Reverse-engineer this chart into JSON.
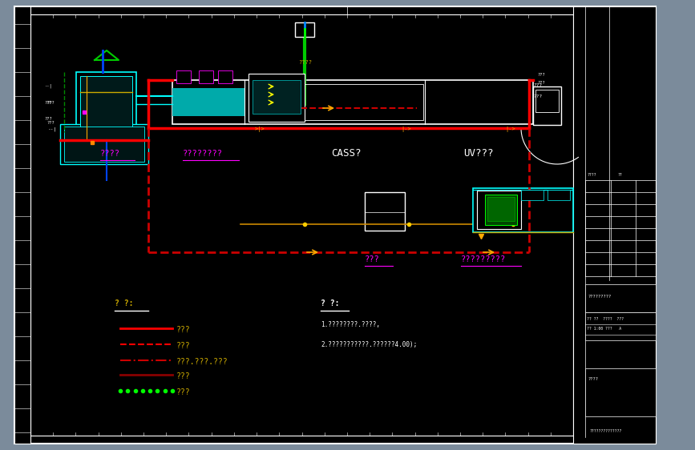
{
  "bg_color": "#000000",
  "outer_bg": "#7b8b9b",
  "border_color": "#ffffff",
  "main_label_cass": "CASS?",
  "main_label_uv": "UV???",
  "main_label_left1": "????",
  "main_label_left2": "????????",
  "main_label_bottom1": "???",
  "main_label_bottom2": "?????????",
  "legend_title1": "? ?:",
  "legend_title2": "? ?:",
  "legend_items": [
    {
      "line_style": "solid",
      "color": "#ff0000",
      "label": "???"
    },
    {
      "line_style": "dashed",
      "color": "#ff0000",
      "label": "???"
    },
    {
      "line_style": "dashdot",
      "color": "#cc0000",
      "label": "???.???.???"
    },
    {
      "line_style": "solid",
      "color": "#880000",
      "label": "???"
    },
    {
      "dots": true,
      "color": "#00ff00",
      "label": "???"
    }
  ],
  "note_items": [
    "1.????????.????,",
    "2.???????????.??????4.00);"
  ]
}
